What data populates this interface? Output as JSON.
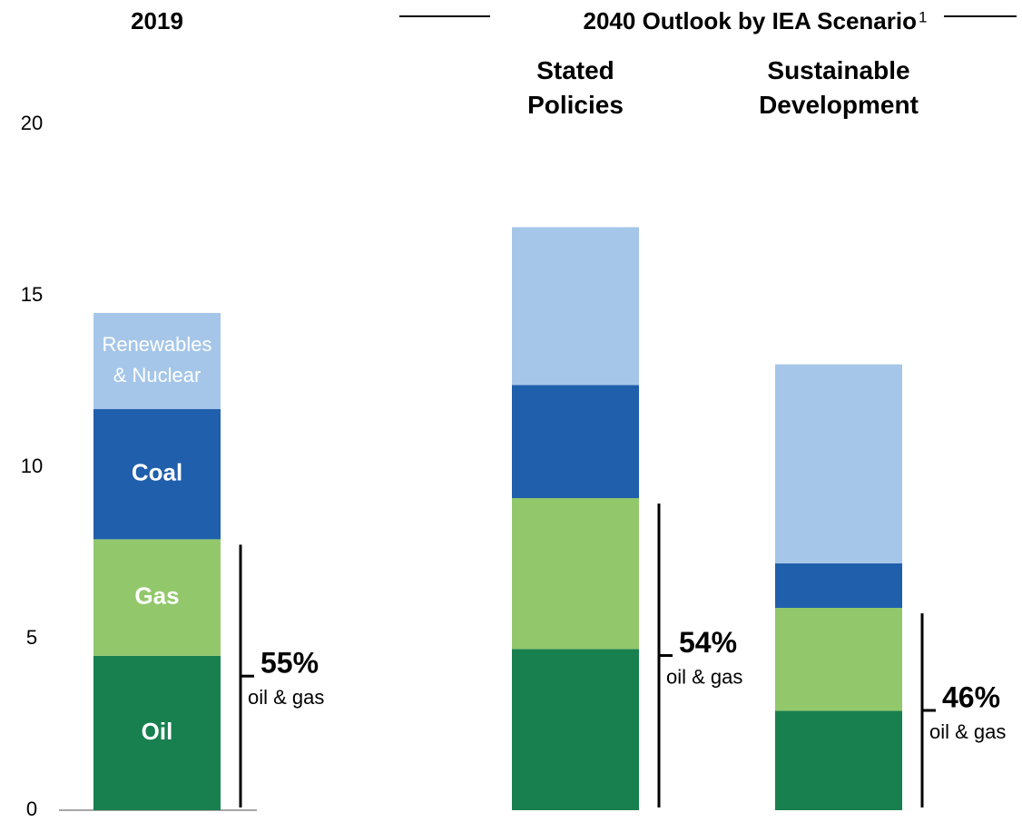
{
  "chart_data": {
    "type": "stacked_bar",
    "group_title": "2040 Outlook by IEA Scenario",
    "group_title_mark": "1",
    "categories": [
      "2019",
      "Stated Policies",
      "Sustainable Development"
    ],
    "series": [
      {
        "name": "Oil",
        "color": "#18804f",
        "values": [
          4.5,
          4.7,
          2.9
        ]
      },
      {
        "name": "Gas",
        "color": "#92c86b",
        "values": [
          3.4,
          4.4,
          3.0
        ]
      },
      {
        "name": "Coal",
        "color": "#1f5fac",
        "values": [
          3.8,
          3.3,
          1.3
        ]
      },
      {
        "name": "Renewables & Nuclear",
        "color": "#a5c6e8",
        "values": [
          2.8,
          4.6,
          5.8
        ]
      }
    ],
    "annotations": [
      {
        "label": "55%",
        "note": "oil & gas"
      },
      {
        "label": "54%",
        "note": "oil & gas"
      },
      {
        "label": "46%",
        "note": "oil & gas"
      }
    ],
    "ylim": [
      0,
      20
    ],
    "yticks": [
      0,
      5,
      10,
      15,
      20
    ]
  }
}
